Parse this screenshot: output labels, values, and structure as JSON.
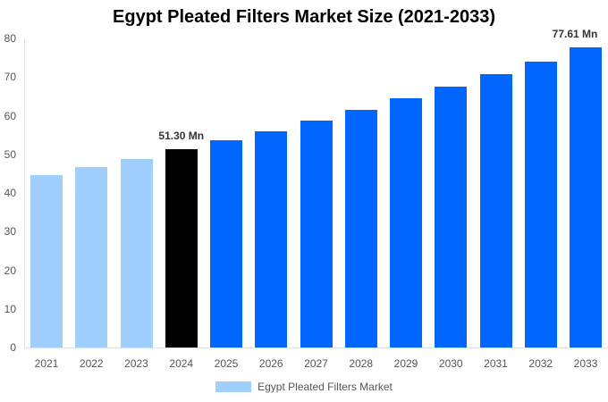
{
  "chart_data": {
    "type": "bar",
    "title": "Egypt Pleated Filters Market Size (2021-2033)",
    "xlabel": "",
    "ylabel": "",
    "ylim": [
      0,
      80
    ],
    "yticks": [
      0,
      10,
      20,
      30,
      40,
      50,
      60,
      70,
      80
    ],
    "grid": false,
    "legend_position": "bottom",
    "categories": [
      "2021",
      "2022",
      "2023",
      "2024",
      "2025",
      "2026",
      "2027",
      "2028",
      "2029",
      "2030",
      "2031",
      "2032",
      "2033"
    ],
    "series": [
      {
        "name": "Egypt Pleated Filters Market",
        "values": [
          44.6,
          46.7,
          48.8,
          51.3,
          53.6,
          56.0,
          58.7,
          61.5,
          64.4,
          67.5,
          70.7,
          74.0,
          77.61
        ]
      }
    ],
    "bar_colors": [
      "#a0cffe",
      "#a0cffe",
      "#a0cffe",
      "#000000",
      "#0066ff",
      "#0066ff",
      "#0066ff",
      "#0066ff",
      "#0066ff",
      "#0066ff",
      "#0066ff",
      "#0066ff",
      "#0066ff"
    ],
    "annotations": [
      {
        "category": "2024",
        "text": "51.30 Mn"
      },
      {
        "category": "2033",
        "text": "77.61 Mn"
      }
    ]
  },
  "legend": {
    "label": "Egypt Pleated Filters Market",
    "color": "#a0cffe"
  }
}
